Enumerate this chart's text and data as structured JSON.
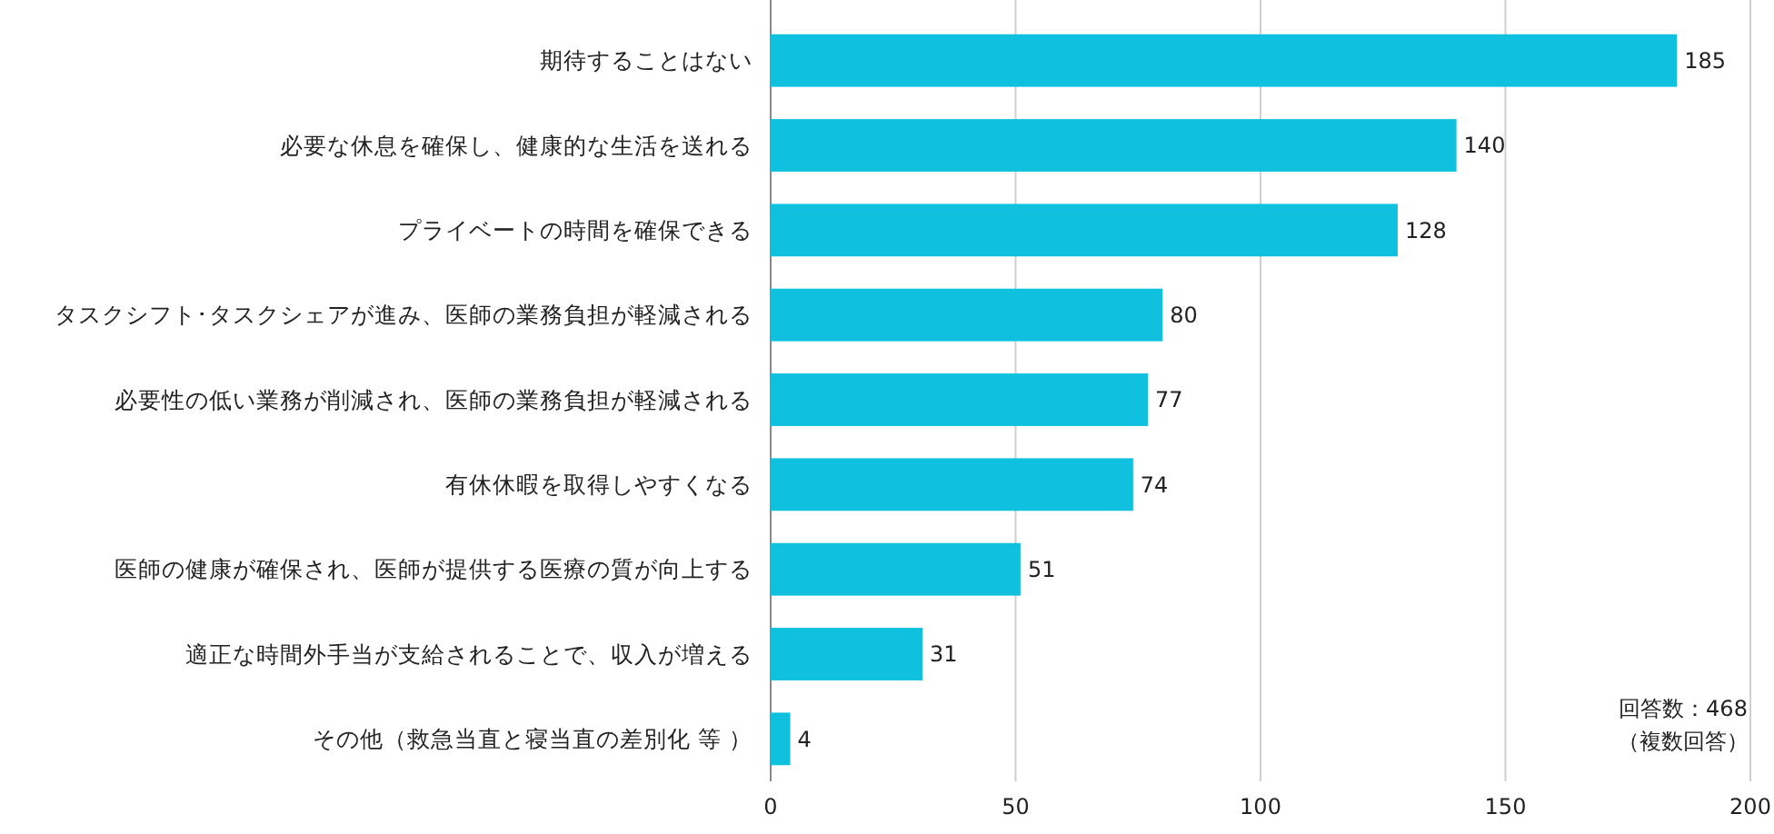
{
  "chart_data": {
    "type": "bar",
    "orientation": "horizontal",
    "categories": [
      "期待することはない",
      "必要な休息を確保し、健康的な生活を送れる",
      "プライベートの時間を確保できる",
      "タスクシフト･タスクシェアが進み、医師の業務負担が軽減される",
      "必要性の低い業務が削減され、医師の業務負担が軽減される",
      "有休休暇を取得しやすくなる",
      "医師の健康が確保され、医師が提供する医療の質が向上する",
      "適正な時間外手当が支給されることで、収入が増える",
      "その他（救急当直と寝当直の差別化 等 ）"
    ],
    "values": [
      185,
      140,
      128,
      80,
      77,
      74,
      51,
      31,
      4
    ],
    "color": "#0fc0df",
    "xlim": [
      0,
      200
    ],
    "xticks": [
      0,
      50,
      100,
      150,
      200
    ],
    "grid": "x",
    "data_labels": true,
    "annotations": [
      "回答数：468",
      "（複数回答）"
    ]
  }
}
